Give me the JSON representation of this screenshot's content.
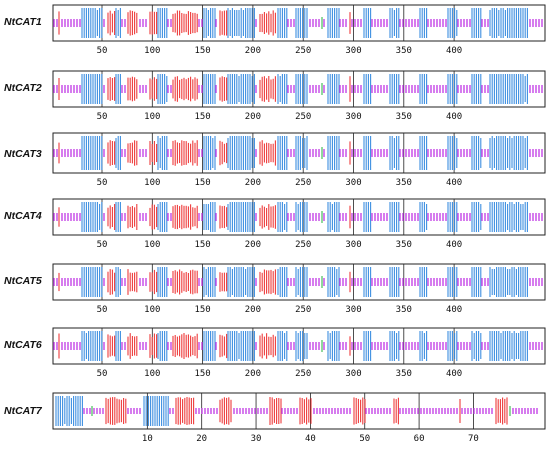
{
  "colors": {
    "helix": "#3d8ee0",
    "strand": "#ee3b3b",
    "coil": "#c445e6",
    "turn": "#35b84a",
    "frame": "#222222"
  },
  "tracks": [
    {
      "name": "NtCAT1",
      "ticks": [
        "50",
        "100",
        "150",
        "200",
        "250",
        "300",
        "350",
        "400"
      ],
      "length": 492
    },
    {
      "name": "NtCAT2",
      "ticks": [
        "50",
        "100",
        "150",
        "200",
        "250",
        "300",
        "350",
        "400"
      ],
      "length": 492
    },
    {
      "name": "NtCAT3",
      "ticks": [
        "50",
        "100",
        "150",
        "200",
        "250",
        "300",
        "350",
        "400"
      ],
      "length": 492
    },
    {
      "name": "NtCAT4",
      "ticks": [
        "50",
        "100",
        "150",
        "200",
        "250",
        "300",
        "350",
        "400"
      ],
      "length": 492
    },
    {
      "name": "NtCAT5",
      "ticks": [
        "50",
        "100",
        "150",
        "200",
        "250",
        "300",
        "350",
        "400"
      ],
      "length": 492
    },
    {
      "name": "NtCAT6",
      "ticks": [
        "50",
        "100",
        "150",
        "200",
        "250",
        "300",
        "350",
        "400"
      ],
      "length": 492
    },
    {
      "name": "NtCAT7",
      "ticks": [
        "10",
        "20",
        "30",
        "40",
        "50",
        "60",
        "70"
      ],
      "length": 86
    }
  ]
}
